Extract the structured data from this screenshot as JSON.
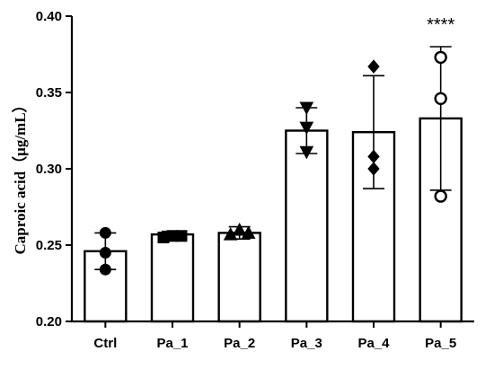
{
  "chart_data": {
    "type": "bar",
    "title": "",
    "xlabel": "",
    "ylabel": "Caproic acid（μg/mL）",
    "ylim": [
      0.2,
      0.4
    ],
    "yticks": [
      "0.20",
      "0.25",
      "0.30",
      "0.35",
      "0.40"
    ],
    "categories": [
      "Ctrl",
      "Pa_1",
      "Pa_2",
      "Pa_3",
      "Pa_4",
      "Pa_5"
    ],
    "values": [
      0.246,
      0.257,
      0.258,
      0.325,
      0.324,
      0.333
    ],
    "error": [
      0.012,
      0.002,
      0.004,
      0.015,
      0.037,
      0.047
    ],
    "points": [
      [
        0.258,
        0.245,
        0.234
      ],
      [
        0.255,
        0.256,
        0.256
      ],
      [
        0.257,
        0.26,
        0.258
      ],
      [
        0.34,
        0.327,
        0.311
      ],
      [
        0.367,
        0.308,
        0.3
      ],
      [
        0.373,
        0.346,
        0.282
      ]
    ],
    "markers": [
      "circle",
      "square",
      "triangle-up",
      "triangle-down",
      "diamond",
      "circle-open"
    ],
    "annotations": [
      {
        "category": "Pa_5",
        "text": "****"
      }
    ],
    "grid": false,
    "legend": "none"
  }
}
